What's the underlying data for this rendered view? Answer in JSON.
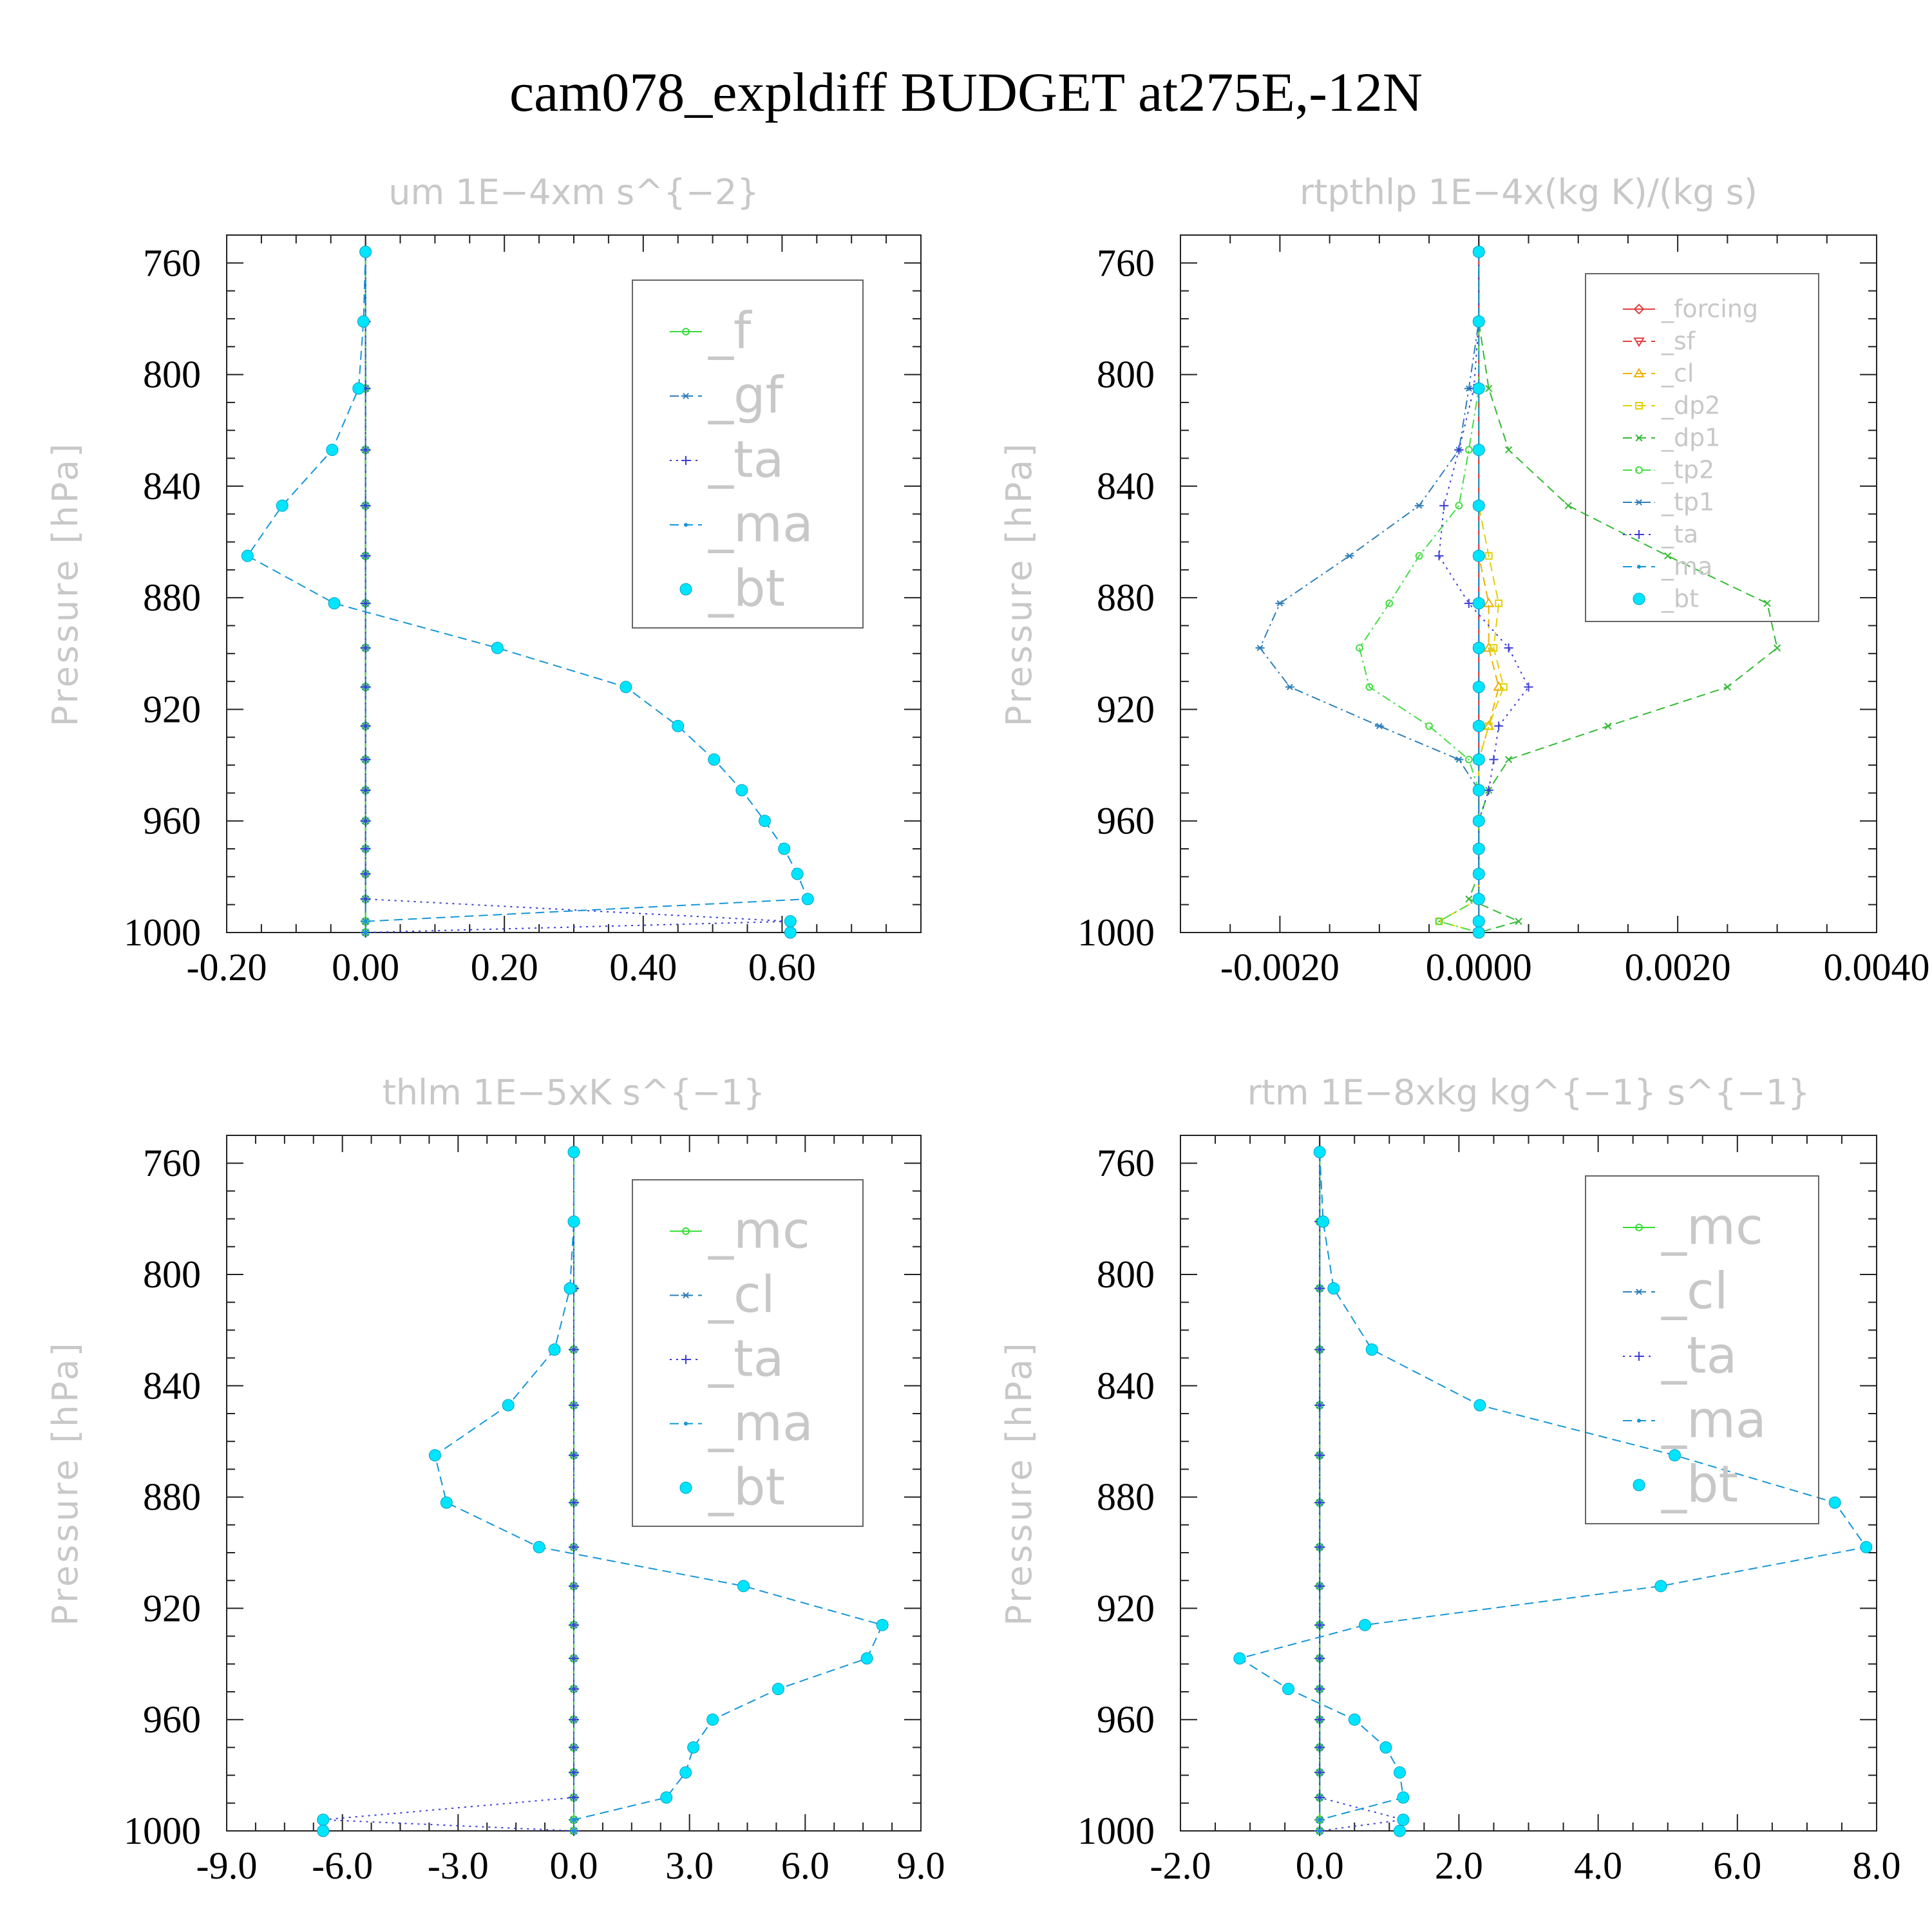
{
  "title": "cam078_expldiff  BUDGET at275E,-12N",
  "chart_data": [
    {
      "type": "line",
      "title": "um   1E−4xm s^{−2}",
      "ylabel": "Pressure [hPa]",
      "xlim": [
        -0.2,
        0.8
      ],
      "ylim": [
        1000,
        750
      ],
      "xticks": [
        "-0.20",
        "0.00",
        "0.20",
        "0.40",
        "0.60"
      ],
      "xtick_values": [
        -0.2,
        0.0,
        0.2,
        0.4,
        0.6
      ],
      "yticks": [
        "760",
        "800",
        "840",
        "880",
        "920",
        "960",
        "1000"
      ],
      "ytick_values": [
        760,
        800,
        840,
        880,
        "920",
        960,
        1000
      ],
      "y": [
        756,
        781,
        805,
        827,
        847,
        865,
        882,
        898,
        912,
        926,
        938,
        949,
        960,
        970,
        979,
        988,
        996,
        1000
      ],
      "series": [
        {
          "name": "_f",
          "color": "#33dd33",
          "style": "solid",
          "marker": "circle-open",
          "x": [
            0,
            0,
            0,
            0,
            0,
            0,
            0,
            0,
            0,
            0,
            0,
            0,
            0,
            0,
            0,
            0,
            0,
            0
          ]
        },
        {
          "name": "_gf",
          "color": "#2f7fb8",
          "style": "dash",
          "marker": "star",
          "x": [
            0,
            0,
            0,
            0,
            0,
            0,
            0,
            0,
            0,
            0,
            0,
            0,
            0,
            0,
            0,
            0,
            0,
            0
          ]
        },
        {
          "name": "_ta",
          "color": "#3b3bd8",
          "style": "dot",
          "marker": "plus",
          "x": [
            0,
            0,
            0,
            0,
            0,
            0,
            0,
            0,
            0,
            0,
            0,
            0,
            0,
            0,
            0,
            0,
            0.612,
            0
          ]
        },
        {
          "name": "_ma",
          "color": "#1496d8",
          "style": "dash",
          "marker": "dot",
          "x": [
            0.0,
            -0.003,
            -0.01,
            -0.048,
            -0.12,
            -0.17,
            -0.045,
            0.19,
            0.375,
            0.45,
            0.502,
            0.542,
            0.575,
            0.603,
            0.622,
            0.637,
            0,
            0
          ]
        },
        {
          "name": "_bt",
          "color": "#00e5ff",
          "style": "none",
          "marker": "circle-filled",
          "x": [
            0.0,
            -0.003,
            -0.01,
            -0.048,
            -0.12,
            -0.17,
            -0.045,
            0.19,
            0.375,
            0.45,
            0.502,
            0.542,
            0.575,
            0.603,
            0.622,
            0.637,
            0.612,
            0.612
          ]
        }
      ],
      "legend_placement": "top-right"
    },
    {
      "type": "line",
      "title": "rtpthlp   1E−4x(kg K)/(kg s)",
      "ylabel": "Pressure [hPa]",
      "xlim": [
        -0.003,
        0.004
      ],
      "ylim": [
        1000,
        750
      ],
      "xticks": [
        "-0.0020",
        "0.0000",
        "0.0020",
        "0.0040"
      ],
      "xtick_values": [
        -0.002,
        0.0,
        0.002,
        0.004
      ],
      "yticks": [
        "760",
        "800",
        "840",
        "880",
        "920",
        "960",
        "1000"
      ],
      "ytick_values": [
        760,
        800,
        840,
        880,
        920,
        960,
        1000
      ],
      "y": [
        756,
        781,
        805,
        827,
        847,
        865,
        882,
        898,
        912,
        926,
        938,
        949,
        960,
        970,
        979,
        988,
        996,
        1000
      ],
      "series": [
        {
          "name": "_forcing",
          "color": "#e04040",
          "style": "solid",
          "marker": "diamond",
          "x": [
            0,
            0,
            0,
            0,
            0,
            0,
            0,
            0,
            0,
            0,
            0,
            0,
            0,
            0,
            0,
            0,
            0,
            0
          ]
        },
        {
          "name": "_sf",
          "color": "#e04040",
          "style": "dash",
          "marker": "triangle-down",
          "x": [
            0,
            0,
            0,
            0,
            0,
            0,
            0,
            0,
            0,
            0,
            0,
            0,
            0,
            0,
            0,
            0,
            0,
            0
          ]
        },
        {
          "name": "_cl",
          "color": "#f0b000",
          "style": "dash",
          "marker": "triangle-up",
          "x": [
            0,
            0,
            0,
            0,
            0,
            0,
            0.0001,
            0.0001,
            0.0002,
            0.0001,
            0,
            0,
            0,
            0,
            0,
            0,
            0,
            0
          ]
        },
        {
          "name": "_dp2",
          "color": "#e0d000",
          "style": "dash",
          "marker": "square",
          "x": [
            0,
            0,
            0,
            0,
            0,
            0.0001,
            0.0002,
            0.00015,
            0.00025,
            0.0001,
            0,
            0,
            0,
            0,
            0,
            0,
            -0.0004,
            0
          ]
        },
        {
          "name": "_dp1",
          "color": "#33bb33",
          "style": "dash",
          "marker": "x",
          "x": [
            0,
            0,
            0.0001,
            0.0003,
            0.0009,
            0.0019,
            0.0029,
            0.003,
            0.0025,
            0.0013,
            0.0003,
            0.0001,
            0,
            0,
            0,
            -0.0001,
            0.0004,
            0
          ]
        },
        {
          "name": "_tp2",
          "color": "#44dd44",
          "style": "dashdot",
          "marker": "circle-open",
          "x": [
            0,
            0,
            0,
            -0.0001,
            -0.0002,
            -0.0006,
            -0.0009,
            -0.0012,
            -0.0011,
            -0.0005,
            -0.0001,
            0,
            0,
            0,
            0,
            0,
            -0.0004,
            0
          ]
        },
        {
          "name": "_tp1",
          "color": "#2f7fb8",
          "style": "dashdot",
          "marker": "star",
          "x": [
            0,
            0,
            -0.0001,
            -0.0002,
            -0.0006,
            -0.0013,
            -0.002,
            -0.0022,
            -0.0019,
            -0.001,
            -0.0002,
            0,
            0,
            0,
            0,
            0,
            0,
            0
          ]
        },
        {
          "name": "_ta",
          "color": "#3b3bd8",
          "style": "dot",
          "marker": "plus",
          "x": [
            0,
            0,
            -5e-05,
            -0.0002,
            -0.00035,
            -0.0004,
            -0.0001,
            0.0003,
            0.0005,
            0.0002,
            0.00015,
            0.0001,
            0,
            0,
            0,
            0,
            0,
            0
          ]
        },
        {
          "name": "_ma",
          "color": "#1496d8",
          "style": "dash",
          "marker": "dot",
          "x": [
            0,
            0,
            0,
            0,
            0,
            0,
            0,
            0,
            0,
            0,
            0,
            0,
            0,
            0,
            0,
            0,
            0,
            0
          ]
        },
        {
          "name": "_bt",
          "color": "#00e5ff",
          "style": "none",
          "marker": "circle-filled",
          "x": [
            0,
            0,
            0,
            0,
            0,
            0,
            0,
            0,
            0,
            0,
            0,
            0,
            0,
            0,
            0,
            0,
            0,
            0
          ]
        }
      ],
      "legend_placement": "top-right"
    },
    {
      "type": "line",
      "title": "thlm   1E−5xK s^{−1}",
      "ylabel": "Pressure [hPa]",
      "xlim": [
        -9.0,
        9.0
      ],
      "ylim": [
        1000,
        750
      ],
      "xticks": [
        "-9.0",
        "-6.0",
        "-3.0",
        "0.0",
        "3.0",
        "6.0",
        "9.0"
      ],
      "xtick_values": [
        -9,
        -6,
        -3,
        0,
        3,
        6,
        9
      ],
      "yticks": [
        "760",
        "800",
        "840",
        "880",
        "920",
        "960",
        "1000"
      ],
      "ytick_values": [
        760,
        800,
        840,
        880,
        920,
        960,
        1000
      ],
      "y": [
        756,
        781,
        805,
        827,
        847,
        865,
        882,
        898,
        912,
        926,
        938,
        949,
        960,
        970,
        979,
        988,
        996,
        1000
      ],
      "series": [
        {
          "name": "_mc",
          "color": "#33dd33",
          "style": "solid",
          "marker": "circle-open",
          "x": [
            0,
            0,
            0,
            0,
            0,
            0,
            0,
            0,
            0,
            0,
            0,
            0,
            0,
            0,
            0,
            0,
            0,
            0
          ]
        },
        {
          "name": "_cl",
          "color": "#2f7fb8",
          "style": "dash",
          "marker": "star",
          "x": [
            0,
            0,
            0,
            0,
            0,
            0,
            0,
            0,
            0,
            0,
            0,
            0,
            0,
            0,
            0,
            0,
            0,
            0
          ]
        },
        {
          "name": "_ta",
          "color": "#3b3bd8",
          "style": "dot",
          "marker": "plus",
          "x": [
            0,
            0,
            0,
            0,
            0,
            0,
            0,
            0,
            0,
            0,
            0,
            0,
            0,
            0,
            0,
            0,
            -6.5,
            0
          ]
        },
        {
          "name": "_ma",
          "color": "#1496d8",
          "style": "dash",
          "marker": "dot",
          "x": [
            0.0,
            0.0,
            -0.1,
            -0.5,
            -1.7,
            -3.6,
            -3.3,
            -0.9,
            4.4,
            8.0,
            7.6,
            5.3,
            3.6,
            3.1,
            2.9,
            2.4,
            0,
            0
          ]
        },
        {
          "name": "_bt",
          "color": "#00e5ff",
          "style": "none",
          "marker": "circle-filled",
          "x": [
            0.0,
            0.0,
            -0.1,
            -0.5,
            -1.7,
            -3.6,
            -3.3,
            -0.9,
            4.4,
            8.0,
            7.6,
            5.3,
            3.6,
            3.1,
            2.9,
            2.4,
            -6.5,
            -6.5
          ]
        }
      ],
      "legend_placement": "top-right"
    },
    {
      "type": "line",
      "title": "rtm   1E−8xkg kg^{−1} s^{−1}",
      "ylabel": "Pressure [hPa]",
      "xlim": [
        -2.0,
        8.0
      ],
      "ylim": [
        1000,
        750
      ],
      "xticks": [
        "-2.0",
        "0.0",
        "2.0",
        "4.0",
        "6.0",
        "8.0"
      ],
      "xtick_values": [
        -2,
        0,
        2,
        4,
        6,
        8
      ],
      "yticks": [
        "760",
        "800",
        "840",
        "880",
        "920",
        "960",
        "1000"
      ],
      "ytick_values": [
        760,
        800,
        840,
        880,
        920,
        960,
        1000
      ],
      "y": [
        756,
        781,
        805,
        827,
        847,
        865,
        882,
        898,
        912,
        926,
        938,
        949,
        960,
        970,
        979,
        988,
        996,
        1000
      ],
      "series": [
        {
          "name": "_mc",
          "color": "#33dd33",
          "style": "solid",
          "marker": "circle-open",
          "x": [
            0,
            0,
            0,
            0,
            0,
            0,
            0,
            0,
            0,
            0,
            0,
            0,
            0,
            0,
            0,
            0,
            0,
            0
          ]
        },
        {
          "name": "_cl",
          "color": "#2f7fb8",
          "style": "dash",
          "marker": "star",
          "x": [
            0,
            0,
            0,
            0,
            0,
            0,
            0,
            0,
            0,
            0,
            0,
            0,
            0,
            0,
            0,
            0,
            0,
            0
          ]
        },
        {
          "name": "_ta",
          "color": "#3b3bd8",
          "style": "dot",
          "marker": "plus",
          "x": [
            0,
            0,
            0,
            0,
            0,
            0,
            0,
            0,
            0,
            0,
            0,
            0,
            0,
            0,
            0,
            0,
            1.2,
            0
          ]
        },
        {
          "name": "_ma",
          "color": "#1496d8",
          "style": "dash",
          "marker": "dot",
          "x": [
            0.0,
            0.05,
            0.2,
            0.75,
            2.3,
            5.1,
            7.4,
            7.85,
            4.9,
            0.65,
            -1.15,
            -0.45,
            0.5,
            0.95,
            1.15,
            1.2,
            0,
            0
          ]
        },
        {
          "name": "_bt",
          "color": "#00e5ff",
          "style": "none",
          "marker": "circle-filled",
          "x": [
            0.0,
            0.05,
            0.2,
            0.75,
            2.3,
            5.1,
            7.4,
            7.85,
            4.9,
            0.65,
            -1.15,
            -0.45,
            0.5,
            0.95,
            1.15,
            1.2,
            1.2,
            1.15
          ]
        }
      ],
      "legend_placement": "top-right"
    }
  ]
}
